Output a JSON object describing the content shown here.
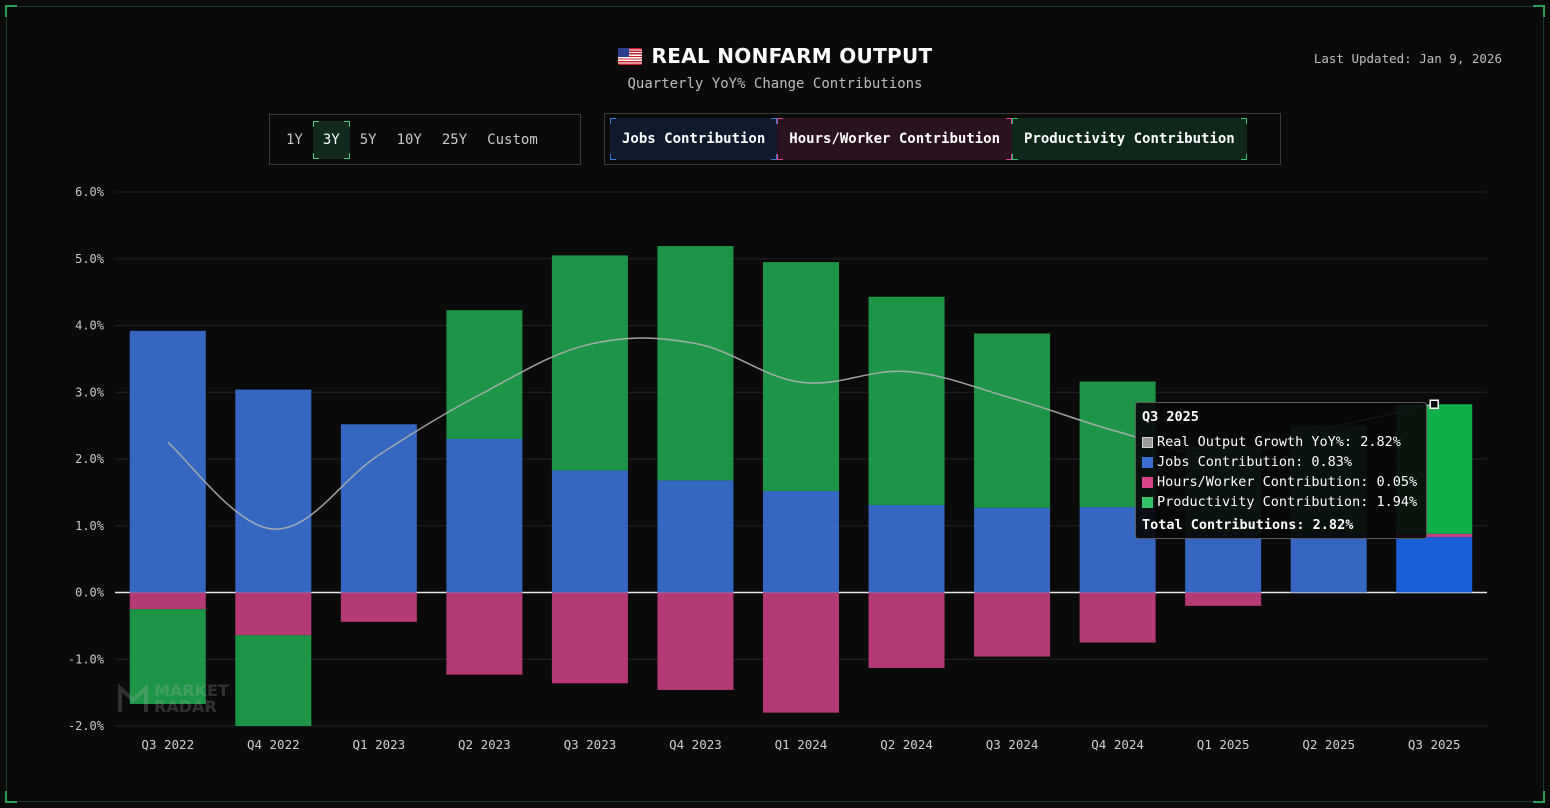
{
  "header": {
    "title": "REAL NONFARM OUTPUT",
    "subtitle": "Quarterly YoY% Change Contributions",
    "last_updated": "Last Updated: Jan 9, 2026"
  },
  "range_selector": {
    "options": [
      "1Y",
      "3Y",
      "5Y",
      "10Y",
      "25Y",
      "Custom"
    ],
    "active": "3Y"
  },
  "legend": {
    "items": [
      "Jobs Contribution",
      "Hours/Worker Contribution",
      "Productivity Contribution"
    ]
  },
  "colors": {
    "jobs": "#3a6fd1",
    "hours": "#c43e7e",
    "productivity": "#1fa24d",
    "line": "#b0b0b0",
    "highlight_jobs": "#1a5fd8",
    "highlight_productivity": "#0fb04a"
  },
  "watermark": {
    "line1": "MARKET",
    "line2": "RADAR"
  },
  "tooltip": {
    "title": "Q3 2025",
    "rows": [
      "Real Output Growth YoY%: 2.82%",
      "Jobs Contribution: 0.83%",
      "Hours/Worker Contribution: 0.05%",
      "Productivity Contribution: 1.94%"
    ],
    "total": "Total Contributions: 2.82%"
  },
  "chart_data": {
    "type": "bar",
    "stacked": true,
    "categories": [
      "Q3 2022",
      "Q4 2022",
      "Q1 2023",
      "Q2 2023",
      "Q3 2023",
      "Q4 2023",
      "Q1 2024",
      "Q2 2024",
      "Q3 2024",
      "Q4 2024",
      "Q1 2025",
      "Q2 2025",
      "Q3 2025"
    ],
    "y_ticks": [
      "6.0%",
      "5.0%",
      "4.0%",
      "3.0%",
      "2.0%",
      "1.0%",
      "0.0%",
      "-1.0%",
      "-2.0%"
    ],
    "ylim": [
      -2.0,
      6.0
    ],
    "grid": true,
    "series": [
      {
        "name": "Jobs Contribution",
        "type": "bar",
        "values": [
          3.92,
          3.04,
          2.52,
          2.3,
          1.83,
          1.68,
          1.52,
          1.31,
          1.27,
          1.28,
          0.9,
          0.9,
          0.83
        ]
      },
      {
        "name": "Hours/Worker Contribution",
        "type": "bar",
        "values": [
          -0.25,
          -0.64,
          -0.44,
          -1.23,
          -1.36,
          -1.46,
          -1.8,
          -1.13,
          -0.96,
          -0.75,
          -0.2,
          0.0,
          0.05
        ]
      },
      {
        "name": "Productivity Contribution",
        "type": "bar",
        "values": [
          -1.42,
          -1.36,
          0.0,
          1.93,
          3.22,
          3.51,
          3.43,
          3.12,
          2.61,
          1.88,
          1.3,
          1.6,
          1.94
        ]
      },
      {
        "name": "Real Output Growth YoY%",
        "type": "line",
        "values": [
          2.25,
          0.95,
          2.06,
          3.0,
          3.72,
          3.73,
          3.15,
          3.31,
          2.91,
          2.41,
          2.04,
          2.46,
          2.82
        ]
      }
    ],
    "highlight_index": 12
  }
}
